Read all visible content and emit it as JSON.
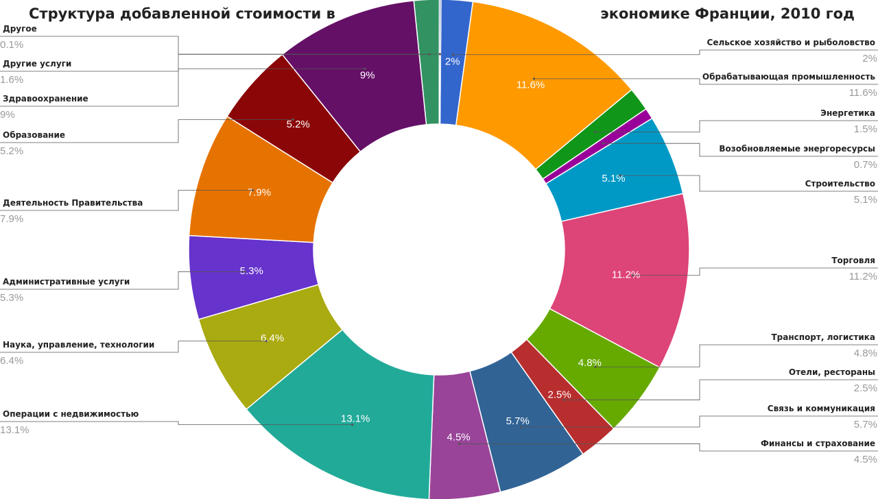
{
  "chart_data": {
    "type": "pie",
    "variant": "donut",
    "title_left": "Структура добавленной стоимости в",
    "title_right": "экономике Франции, 2010 год",
    "unit": "%",
    "legend_placement": "both-sides",
    "slices": [
      {
        "name": "Сельское хозяйство и рыболовство",
        "value": 2,
        "label": "2%",
        "inner_label": "2%",
        "color": "#3366cc",
        "side": "right"
      },
      {
        "name": "Обрабатывающая промышленность",
        "value": 11.6,
        "label": "11.6%",
        "inner_label": "11.6%",
        "color": "#ff9900",
        "side": "right"
      },
      {
        "name": "Энергетика",
        "value": 1.5,
        "label": "1.5%",
        "inner_label": "",
        "color": "#109618",
        "side": "right"
      },
      {
        "name": "Возобновляемые энергоресурсы",
        "value": 0.7,
        "label": "0.7%",
        "inner_label": "",
        "color": "#990099",
        "side": "right"
      },
      {
        "name": "Строительство",
        "value": 5.1,
        "label": "5.1%",
        "inner_label": "5.1%",
        "color": "#0099c6",
        "side": "right"
      },
      {
        "name": "Торговля",
        "value": 11.2,
        "label": "11.2%",
        "inner_label": "11.2%",
        "color": "#dd4477",
        "side": "right"
      },
      {
        "name": "Транспорт, логистика",
        "value": 4.8,
        "label": "4.8%",
        "inner_label": "4.8%",
        "color": "#66aa00",
        "side": "right"
      },
      {
        "name": "Отели, рестораны",
        "value": 2.5,
        "label": "2.5%",
        "inner_label": "2.5%",
        "color": "#b82e2e",
        "side": "right"
      },
      {
        "name": "Связь и коммуникация",
        "value": 5.7,
        "label": "5.7%",
        "inner_label": "5.7%",
        "color": "#316395",
        "side": "right"
      },
      {
        "name": "Финансы и страхование",
        "value": 4.5,
        "label": "4.5%",
        "inner_label": "4.5%",
        "color": "#994499",
        "side": "right"
      },
      {
        "name": "Операции с недвижимостью",
        "value": 13.1,
        "label": "13.1%",
        "inner_label": "13.1%",
        "color": "#22aa99",
        "side": "left"
      },
      {
        "name": "Наука, управление, технологии",
        "value": 6.4,
        "label": "6.4%",
        "inner_label": "6.4%",
        "color": "#aaaa11",
        "side": "left"
      },
      {
        "name": "Административные услуги",
        "value": 5.3,
        "label": "5.3%",
        "inner_label": "5.3%",
        "color": "#6633cc",
        "side": "left"
      },
      {
        "name": "Деятельность Правительства",
        "value": 7.9,
        "label": "7.9%",
        "inner_label": "7.9%",
        "color": "#e67300",
        "side": "left"
      },
      {
        "name": "Образование",
        "value": 5.2,
        "label": "5.2%",
        "inner_label": "5.2%",
        "color": "#8b0707",
        "side": "left"
      },
      {
        "name": "Здравоохранение",
        "value": 9,
        "label": "9%",
        "inner_label": "9%",
        "color": "#651067",
        "side": "left"
      },
      {
        "name": "Другие услуги",
        "value": 1.6,
        "label": "1.6%",
        "inner_label": "",
        "color": "#329262",
        "side": "left"
      },
      {
        "name": "Другое",
        "value": 0.1,
        "label": "0.1%",
        "inner_label": "",
        "color": "#5574a6",
        "side": "left"
      }
    ]
  }
}
